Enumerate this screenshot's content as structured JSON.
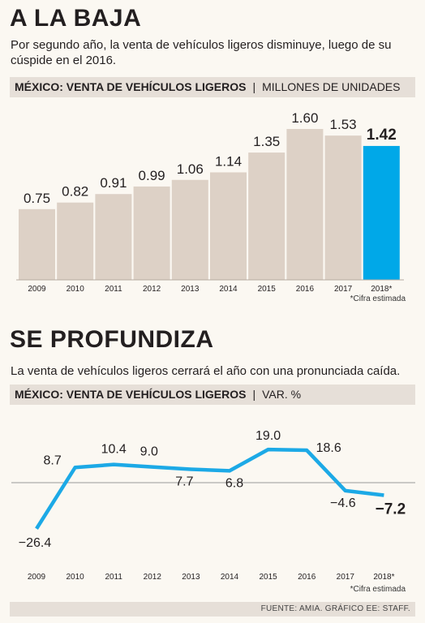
{
  "section1": {
    "title": "A LA BAJA",
    "subtitle": "Por segundo año, la venta de vehículos ligeros disminuye, luego de su cúspide en el 2016.",
    "band_bold": "MÉXICO: VENTA DE VEHÍCULOS LIGEROS",
    "band_sep": "|",
    "band_unit": "MILLONES DE UNIDADES",
    "note": "*Cifra estimada"
  },
  "section2": {
    "title": "SE PROFUNDIZA",
    "subtitle": "La venta de vehículos ligeros cerrará el año con una pronunciada caída.",
    "band_bold": "MÉXICO: VENTA DE VEHÍCULOS LIGEROS",
    "band_sep": "|",
    "band_unit": "VAR. %",
    "note": "*Cifra estimada"
  },
  "source": "FUENTE: AMIA. GRÁFICO EE: STAFF.",
  "colors": {
    "bar": "#ddd1c6",
    "highlight": "#00a8e8",
    "line": "#1ca9e6",
    "text": "#231f20"
  },
  "chart_data": [
    {
      "type": "bar",
      "categories": [
        "2009",
        "2010",
        "2011",
        "2012",
        "2013",
        "2014",
        "2015",
        "2016",
        "2017",
        "2018*"
      ],
      "values": [
        0.75,
        0.82,
        0.91,
        0.99,
        1.06,
        1.14,
        1.35,
        1.6,
        1.53,
        1.42
      ],
      "labels": [
        "0.75",
        "0.82",
        "0.91",
        "0.99",
        "1.06",
        "1.14",
        "1.35",
        "1.60",
        "1.53",
        "1.42"
      ],
      "highlight_index": 9,
      "title": "MÉXICO: VENTA DE VEHÍCULOS LIGEROS",
      "ylabel": "MILLONES DE UNIDADES",
      "ylim": [
        0,
        1.6
      ]
    },
    {
      "type": "line",
      "categories": [
        "2009",
        "2010",
        "2011",
        "2012",
        "2013",
        "2014",
        "2015",
        "2016",
        "2017",
        "2018*"
      ],
      "values": [
        -26.4,
        8.7,
        10.4,
        9.0,
        7.7,
        6.8,
        19.0,
        18.6,
        -4.6,
        -7.2
      ],
      "labels": [
        "−26.4",
        "8.7",
        "10.4",
        "9.0",
        "7.7",
        "6.8",
        "19.0",
        "18.6",
        "−4.6",
        "−7.2"
      ],
      "highlight_index": 9,
      "title": "MÉXICO: VENTA DE VEHÍCULOS LIGEROS",
      "ylabel": "VAR. %",
      "ylim": [
        -26.4,
        19.0
      ]
    }
  ]
}
